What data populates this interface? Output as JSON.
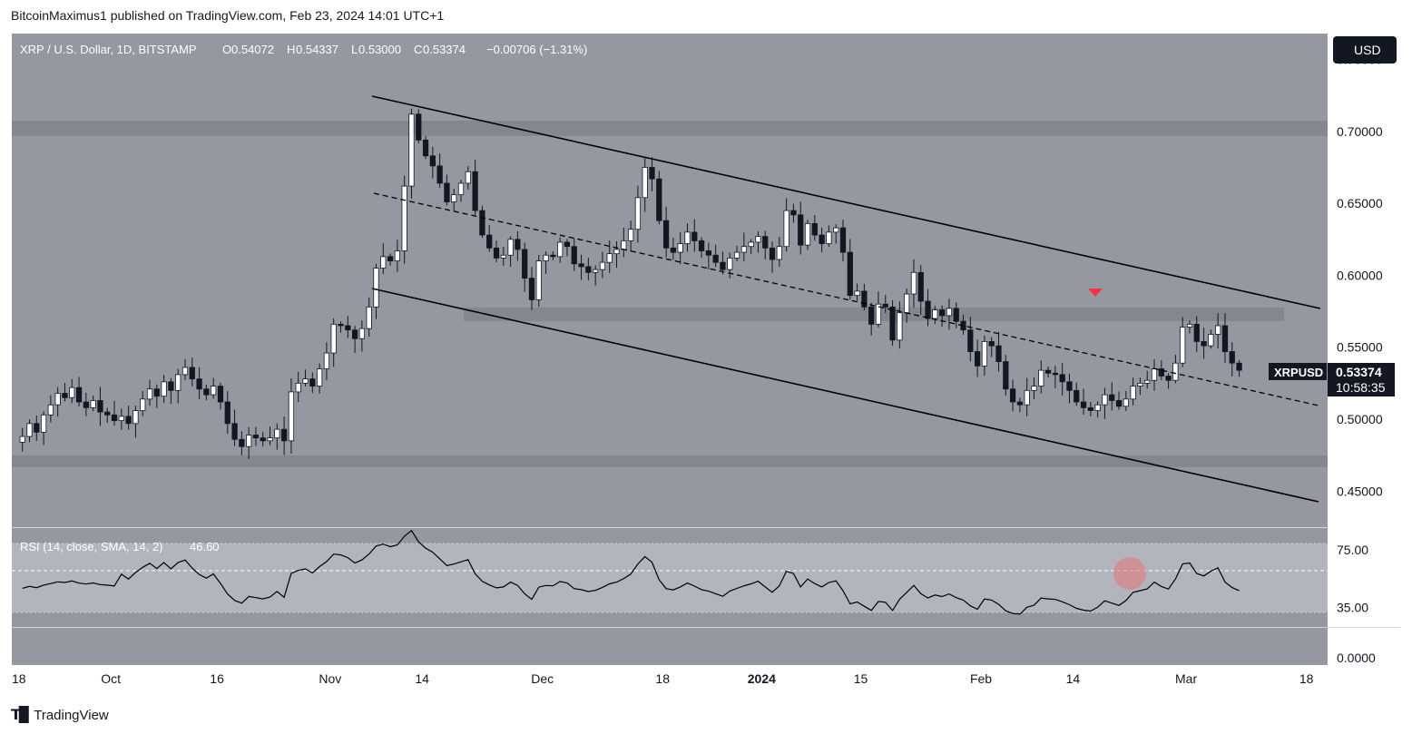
{
  "header": {
    "published_text": "BitcoinMaximus1 published on TradingView.com, Feb 23, 2024 14:01 UTC+1"
  },
  "legend": {
    "symbol": "XRP / U.S. Dollar, 1D, BITSTAMP",
    "o_label": "O",
    "o_value": "0.54072",
    "h_label": "H",
    "h_value": "0.54337",
    "l_label": "L",
    "l_value": "0.53000",
    "c_label": "C",
    "c_value": "0.53374",
    "change": "−0.00706 (−1.31%)"
  },
  "currency_button": "USD",
  "price_tag": {
    "ticker": "XRPUSD",
    "price": "0.53374",
    "countdown": "10:58:35"
  },
  "rsi_legend": {
    "label": "RSI (14, close, SMA, 14, 2)",
    "value": "46.60"
  },
  "brand_text": "TradingView",
  "colors": {
    "pane_bg": "#9598a1",
    "zone": "#85878f",
    "rsi_band": "#b2b5be",
    "marker": "#f23645",
    "circle": "#e57373"
  },
  "chart_data": [
    {
      "type": "candlestick",
      "title": "XRP / U.S. Dollar, 1D, BITSTAMP",
      "y_ticks": [
        "0.75000",
        "0.70000",
        "0.65000",
        "0.60000",
        "0.55000",
        "0.50000",
        "0.45000"
      ],
      "ylim": [
        0.425,
        0.768
      ],
      "x_ticks": [
        {
          "label": "18",
          "date": "2023-09-18"
        },
        {
          "label": "Oct",
          "date": "2023-10-01"
        },
        {
          "label": "16",
          "date": "2023-10-16"
        },
        {
          "label": "Nov",
          "date": "2023-11-01"
        },
        {
          "label": "14",
          "date": "2023-11-14"
        },
        {
          "label": "Dec",
          "date": "2023-12-01"
        },
        {
          "label": "18",
          "date": "2023-12-18"
        },
        {
          "label": "2024",
          "date": "2024-01-01"
        },
        {
          "label": "15",
          "date": "2024-01-15"
        },
        {
          "label": "Feb",
          "date": "2024-02-01"
        },
        {
          "label": "14",
          "date": "2024-02-14"
        },
        {
          "label": "Mar",
          "date": "2024-03-01"
        },
        {
          "label": "18",
          "date": "2024-03-18"
        }
      ],
      "date_range": [
        "2023-09-17",
        "2024-03-21"
      ],
      "close_series": [
        0.488,
        0.497,
        0.491,
        0.503,
        0.51,
        0.518,
        0.515,
        0.522,
        0.512,
        0.508,
        0.513,
        0.505,
        0.503,
        0.499,
        0.502,
        0.497,
        0.506,
        0.514,
        0.521,
        0.516,
        0.526,
        0.52,
        0.531,
        0.536,
        0.528,
        0.521,
        0.517,
        0.523,
        0.512,
        0.497,
        0.486,
        0.481,
        0.489,
        0.487,
        0.485,
        0.487,
        0.493,
        0.485,
        0.519,
        0.525,
        0.528,
        0.523,
        0.535,
        0.546,
        0.566,
        0.565,
        0.562,
        0.556,
        0.563,
        0.578,
        0.605,
        0.613,
        0.61,
        0.617,
        0.662,
        0.712,
        0.694,
        0.683,
        0.676,
        0.664,
        0.651,
        0.656,
        0.664,
        0.672,
        0.645,
        0.628,
        0.619,
        0.612,
        0.614,
        0.625,
        0.618,
        0.598,
        0.583,
        0.61,
        0.614,
        0.613,
        0.623,
        0.62,
        0.608,
        0.606,
        0.602,
        0.604,
        0.609,
        0.615,
        0.618,
        0.624,
        0.632,
        0.654,
        0.675,
        0.667,
        0.638,
        0.619,
        0.616,
        0.622,
        0.63,
        0.624,
        0.617,
        0.614,
        0.609,
        0.604,
        0.612,
        0.616,
        0.62,
        0.623,
        0.627,
        0.619,
        0.611,
        0.62,
        0.645,
        0.642,
        0.621,
        0.636,
        0.628,
        0.622,
        0.63,
        0.633,
        0.616,
        0.586,
        0.589,
        0.578,
        0.566,
        0.58,
        0.578,
        0.555,
        0.574,
        0.587,
        0.602,
        0.582,
        0.57,
        0.576,
        0.572,
        0.577,
        0.568,
        0.562,
        0.547,
        0.537,
        0.554,
        0.551,
        0.54,
        0.521,
        0.512,
        0.51,
        0.52,
        0.523,
        0.534,
        0.532,
        0.531,
        0.526,
        0.52,
        0.512,
        0.508,
        0.506,
        0.51,
        0.517,
        0.513,
        0.509,
        0.514,
        0.523,
        0.525,
        0.527,
        0.535,
        0.53,
        0.527,
        0.539,
        0.564,
        0.566,
        0.554,
        0.551,
        0.559,
        0.565,
        0.547,
        0.539,
        0.534
      ]
    },
    {
      "type": "line",
      "title": "RSI (14, close, SMA, 14, 2)",
      "y_ticks": [
        "75.00",
        "35.00",
        "0.0000"
      ],
      "ylim": [
        -5,
        90
      ],
      "band": [
        30,
        70
      ],
      "midline": 50
    }
  ]
}
